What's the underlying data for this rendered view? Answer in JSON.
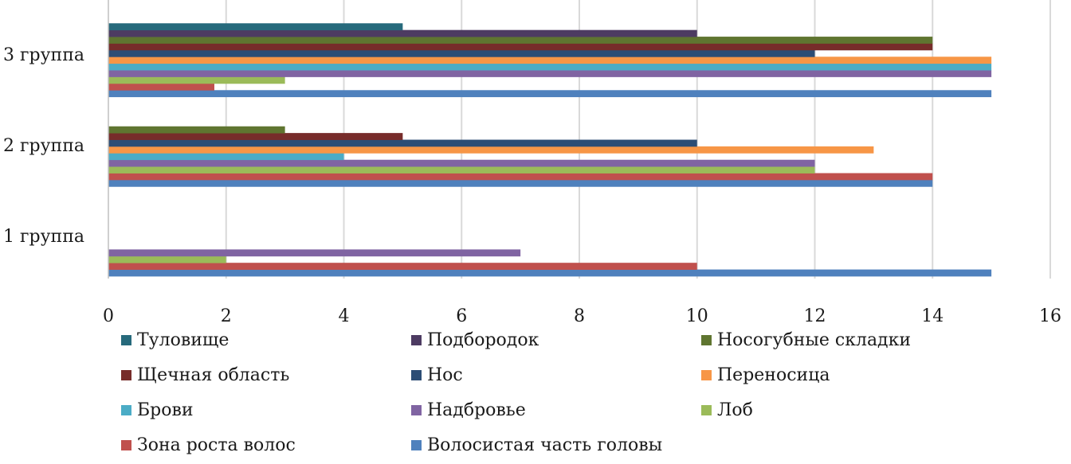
{
  "chart_data": {
    "type": "bar",
    "orientation": "horizontal",
    "title": "",
    "xlabel": "",
    "ylabel": "",
    "xlim": [
      0,
      16
    ],
    "ticks": [
      "0",
      "2",
      "4",
      "6",
      "8",
      "10",
      "12",
      "14",
      "16"
    ],
    "grid": true,
    "legend_position": "bottom",
    "categories": [
      "1 группа",
      "2 группа",
      "3 группа"
    ],
    "series": [
      {
        "name": "Волосистая часть головы",
        "color": "#4f81bd",
        "values": [
          15,
          14,
          15
        ]
      },
      {
        "name": "Зона роста волос",
        "color": "#c0504d",
        "values": [
          10,
          14,
          1.8
        ]
      },
      {
        "name": "Лоб",
        "color": "#9bbb59",
        "values": [
          2,
          12,
          3
        ]
      },
      {
        "name": "Надбровье",
        "color": "#8064a2",
        "values": [
          7,
          12,
          15
        ]
      },
      {
        "name": "Брови",
        "color": "#4bacc6",
        "values": [
          0,
          4,
          15
        ]
      },
      {
        "name": "Переносица",
        "color": "#f79646",
        "values": [
          0,
          13,
          15
        ]
      },
      {
        "name": "Нос",
        "color": "#2c4d75",
        "values": [
          0,
          10,
          12
        ]
      },
      {
        "name": "Щечная область",
        "color": "#772c2a",
        "values": [
          0,
          5,
          14
        ]
      },
      {
        "name": "Носогубные складки",
        "color": "#5f7530",
        "values": [
          0,
          3,
          14
        ]
      },
      {
        "name": "Подбородок",
        "color": "#4d3b62",
        "values": [
          0,
          0,
          10
        ]
      },
      {
        "name": "Туловище",
        "color": "#276a7c",
        "values": [
          0,
          0,
          5
        ]
      }
    ],
    "legend_order": [
      "Туловище",
      "Подбородок",
      "Носогубные складки",
      "Щечная область",
      "Нос",
      "Переносица",
      "Брови",
      "Надбровье",
      "Лоб",
      "Зона роста волос",
      "Волосистая часть головы"
    ]
  }
}
